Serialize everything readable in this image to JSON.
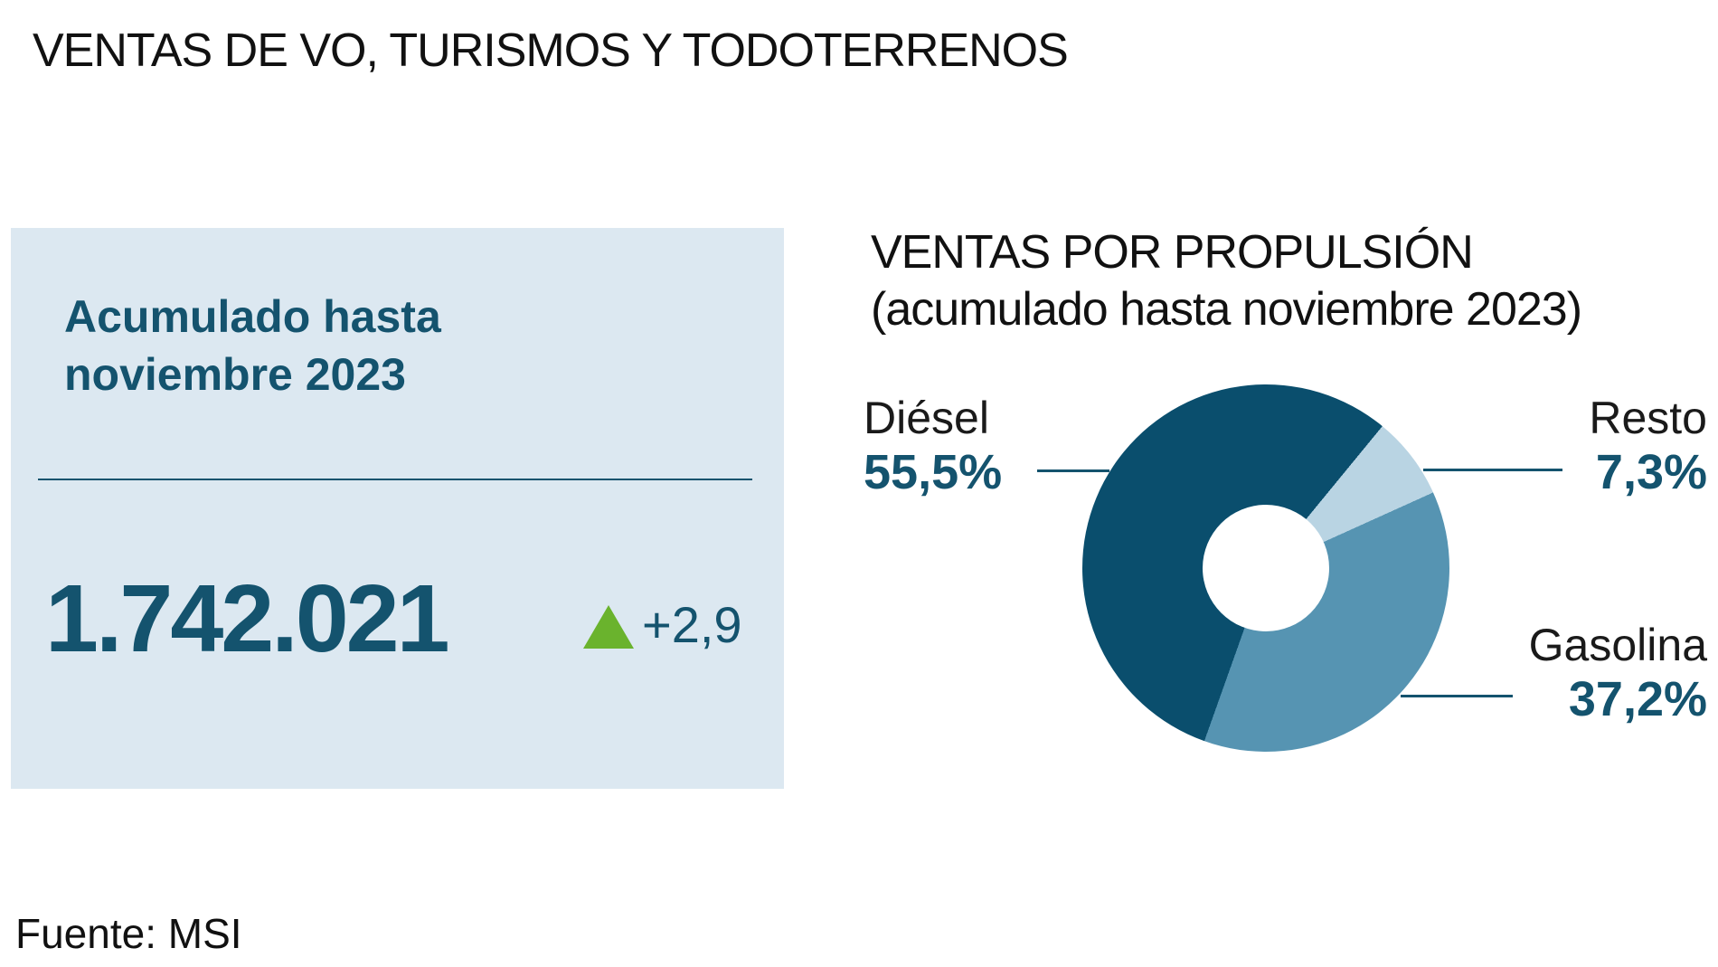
{
  "title": "VENTAS DE VO, TURISMOS Y TODOTERRENOS",
  "source": "Fuente: MSI",
  "colors": {
    "ink": "#14536e",
    "card_background": "#dce8f1",
    "delta_green": "#6ab32d",
    "leader_line": "#14536e"
  },
  "summary_card": {
    "label_line1": "Acumulado hasta",
    "label_line2": "noviembre 2023",
    "value": "1.742.021",
    "delta": "+2,9",
    "delta_direction": "up"
  },
  "chart_data": {
    "type": "pie",
    "donut": true,
    "title_line1": "VENTAS POR PROPULSIÓN",
    "title_line2": "(acumulado hasta noviembre 2023)",
    "start_angle_deg": 199.6,
    "legend_position": "callout-labels",
    "segments": [
      {
        "label": "Diésel",
        "value": 55.5,
        "display": "55,5%",
        "color": "#0a4e6d"
      },
      {
        "label": "Resto",
        "value": 7.3,
        "display": "7,3%",
        "color": "#b9d4e3"
      },
      {
        "label": "Gasolina",
        "value": 37.2,
        "display": "37,2%",
        "color": "#5694b2"
      }
    ]
  }
}
